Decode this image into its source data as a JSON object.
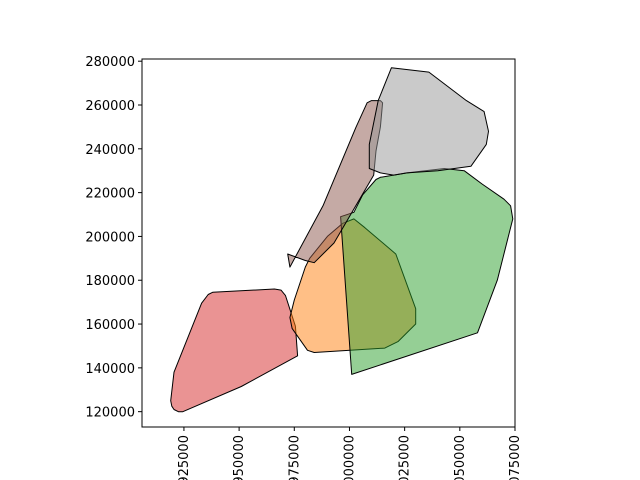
{
  "chart_data": {
    "type": "polygon-map",
    "title": "",
    "xlabel": "",
    "ylabel": "",
    "xlim": [
      906000,
      1075000
    ],
    "ylim": [
      113000,
      281000
    ],
    "x_ticks": [
      {
        "value": 925000,
        "label": "925000"
      },
      {
        "value": 950000,
        "label": "950000"
      },
      {
        "value": 975000,
        "label": "975000"
      },
      {
        "value": 1000000,
        "label": "1000000"
      },
      {
        "value": 1025000,
        "label": "1025000"
      },
      {
        "value": 1050000,
        "label": "1050000"
      },
      {
        "value": 1075000,
        "label": "1075000"
      }
    ],
    "y_ticks": [
      {
        "value": 120000,
        "label": "120000"
      },
      {
        "value": 140000,
        "label": "140000"
      },
      {
        "value": 160000,
        "label": "160000"
      },
      {
        "value": 180000,
        "label": "180000"
      },
      {
        "value": 200000,
        "label": "200000"
      },
      {
        "value": 220000,
        "label": "220000"
      },
      {
        "value": 240000,
        "label": "240000"
      },
      {
        "value": 260000,
        "label": "260000"
      },
      {
        "value": 280000,
        "label": "280000"
      }
    ],
    "x_tick_rotation": "vertical",
    "grid": false,
    "legend": "none",
    "polygons": [
      {
        "color": "#d62728",
        "alpha": 0.5,
        "coords": [
          [
            920500,
            121000
          ],
          [
            919500,
            122500
          ],
          [
            919000,
            125000
          ],
          [
            920500,
            138000
          ],
          [
            933000,
            169500
          ],
          [
            936000,
            173500
          ],
          [
            938000,
            174500
          ],
          [
            966000,
            176000
          ],
          [
            969000,
            175500
          ],
          [
            971000,
            173000
          ],
          [
            975500,
            159000
          ],
          [
            976500,
            145500
          ],
          [
            951000,
            131500
          ],
          [
            924500,
            120000
          ],
          [
            922500,
            120000
          ],
          [
            920500,
            121000
          ]
        ]
      },
      {
        "color": "#ff7f0e",
        "alpha": 0.5,
        "coords": [
          [
            1002000,
            208000
          ],
          [
            997000,
            206000
          ],
          [
            990000,
            200000
          ],
          [
            982000,
            190000
          ],
          [
            980000,
            186000
          ],
          [
            975000,
            171000
          ],
          [
            973000,
            163000
          ],
          [
            974000,
            158000
          ],
          [
            981000,
            148000
          ],
          [
            984000,
            147000
          ],
          [
            1016000,
            149000
          ],
          [
            1022000,
            152000
          ],
          [
            1030000,
            160000
          ],
          [
            1030000,
            167000
          ],
          [
            1021000,
            192000
          ],
          [
            1007000,
            204000
          ],
          [
            1002000,
            208000
          ]
        ]
      },
      {
        "color": "#2ca02c",
        "alpha": 0.5,
        "coords": [
          [
            1001000,
            137000
          ],
          [
            996000,
            209000
          ],
          [
            1002000,
            211000
          ],
          [
            1006000,
            219000
          ],
          [
            1012000,
            226000
          ],
          [
            1014000,
            227000
          ],
          [
            1026000,
            229000
          ],
          [
            1043000,
            231000
          ],
          [
            1052000,
            230000
          ],
          [
            1060000,
            224000
          ],
          [
            1070000,
            217000
          ],
          [
            1073000,
            214000
          ],
          [
            1074000,
            208000
          ],
          [
            1067000,
            180000
          ],
          [
            1058000,
            156000
          ],
          [
            1001000,
            137000
          ]
        ]
      },
      {
        "color": "#8c564b",
        "alpha": 0.5,
        "coords": [
          [
            993000,
            197000
          ],
          [
            984000,
            188000
          ],
          [
            980000,
            189000
          ],
          [
            972000,
            192000
          ],
          [
            973000,
            186000
          ],
          [
            988000,
            214000
          ],
          [
            1003000,
            250000
          ],
          [
            1008000,
            261000
          ],
          [
            1010000,
            262000
          ],
          [
            1014000,
            262000
          ],
          [
            1015000,
            261000
          ],
          [
            1014000,
            250000
          ],
          [
            1012000,
            239000
          ],
          [
            1011000,
            228000
          ],
          [
            993000,
            197000
          ]
        ]
      },
      {
        "color": "#969696",
        "alpha": 0.5,
        "coords": [
          [
            1009000,
            231000
          ],
          [
            1009000,
            242000
          ],
          [
            1013000,
            262000
          ],
          [
            1019000,
            277000
          ],
          [
            1036000,
            275000
          ],
          [
            1053000,
            262000
          ],
          [
            1061000,
            257000
          ],
          [
            1063000,
            248000
          ],
          [
            1062000,
            242000
          ],
          [
            1055000,
            232000
          ],
          [
            1040000,
            230000
          ],
          [
            1026000,
            229000
          ],
          [
            1020000,
            228000
          ],
          [
            1014000,
            229000
          ],
          [
            1009000,
            231000
          ]
        ]
      }
    ]
  }
}
